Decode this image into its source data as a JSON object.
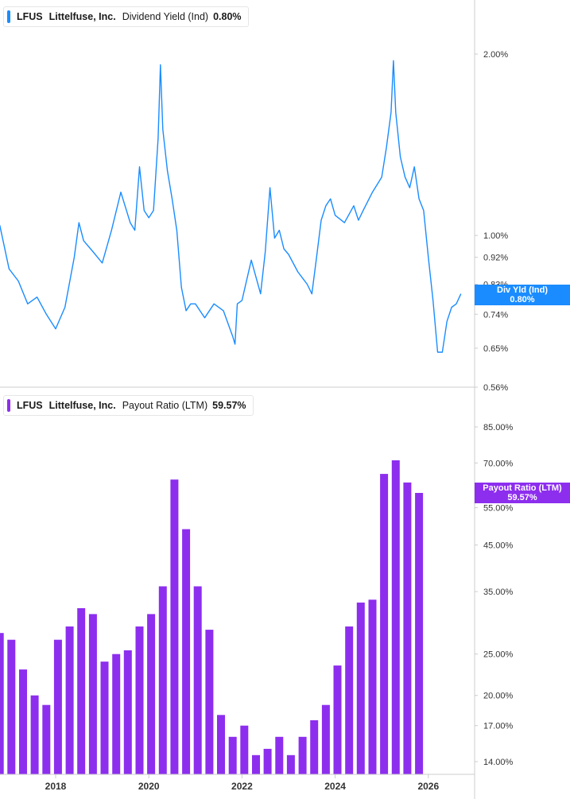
{
  "colors": {
    "yield": "#1a8cff",
    "payout": "#8d2eee",
    "axis": "#cccccc",
    "text": "#333333"
  },
  "legend_top": {
    "ticker": "LFUS",
    "company": "Littelfuse, Inc.",
    "metric": "Dividend Yield (Ind)",
    "value": "0.80%"
  },
  "legend_bottom": {
    "ticker": "LFUS",
    "company": "Littelfuse, Inc.",
    "metric": "Payout Ratio (LTM)",
    "value": "59.57%"
  },
  "tag_top": {
    "line1": "Div Yld (Ind)",
    "line2": "0.80%"
  },
  "tag_bottom": {
    "line1": "Payout Ratio (LTM)",
    "line2": "59.57%"
  },
  "chart_data": [
    {
      "type": "line",
      "series": [
        {
          "name": "Dividend Yield (Ind)",
          "x": [
            2016.8,
            2017.0,
            2017.2,
            2017.4,
            2017.6,
            2017.8,
            2018.0,
            2018.2,
            2018.4,
            2018.5,
            2018.6,
            2018.8,
            2019.0,
            2019.2,
            2019.4,
            2019.6,
            2019.7,
            2019.8,
            2019.9,
            2020.0,
            2020.1,
            2020.2,
            2020.25,
            2020.3,
            2020.4,
            2020.5,
            2020.6,
            2020.7,
            2020.8,
            2020.9,
            2021.0,
            2021.2,
            2021.4,
            2021.6,
            2021.8,
            2021.85,
            2021.9,
            2022.0,
            2022.2,
            2022.4,
            2022.5,
            2022.6,
            2022.7,
            2022.8,
            2022.9,
            2023.0,
            2023.2,
            2023.4,
            2023.5,
            2023.6,
            2023.7,
            2023.8,
            2023.9,
            2024.0,
            2024.2,
            2024.4,
            2024.5,
            2024.6,
            2024.8,
            2025.0,
            2025.1,
            2025.2,
            2025.25,
            2025.3,
            2025.4,
            2025.5,
            2025.6,
            2025.7,
            2025.8,
            2025.9,
            2026.0,
            2026.1,
            2026.2,
            2026.3,
            2026.4,
            2026.5,
            2026.6,
            2026.7
          ],
          "y": [
            1.04,
            0.88,
            0.84,
            0.77,
            0.79,
            0.74,
            0.7,
            0.76,
            0.92,
            1.05,
            0.98,
            0.94,
            0.9,
            1.02,
            1.18,
            1.05,
            1.02,
            1.3,
            1.1,
            1.07,
            1.1,
            1.45,
            1.92,
            1.5,
            1.28,
            1.15,
            1.02,
            0.82,
            0.75,
            0.77,
            0.77,
            0.73,
            0.77,
            0.75,
            0.68,
            0.66,
            0.77,
            0.78,
            0.91,
            0.8,
            0.94,
            1.2,
            0.99,
            1.02,
            0.95,
            0.93,
            0.87,
            0.83,
            0.8,
            0.92,
            1.06,
            1.12,
            1.15,
            1.08,
            1.05,
            1.12,
            1.06,
            1.1,
            1.18,
            1.25,
            1.4,
            1.6,
            1.95,
            1.6,
            1.35,
            1.25,
            1.2,
            1.3,
            1.15,
            1.1,
            0.92,
            0.78,
            0.64,
            0.64,
            0.72,
            0.76,
            0.77,
            0.8
          ]
        }
      ],
      "yscale": "log",
      "ytick_values": [
        0.56,
        0.65,
        0.74,
        0.83,
        0.92,
        1.0,
        2.0
      ],
      "ytick_labels": [
        "0.56%",
        "0.65%",
        "0.74%",
        "0.83%",
        "0.92%",
        "1.00%",
        "2.00%"
      ]
    },
    {
      "type": "bar",
      "series": [
        {
          "name": "Payout Ratio (LTM)",
          "x": [
            2016.8,
            2017.05,
            2017.3,
            2017.55,
            2017.8,
            2018.05,
            2018.3,
            2018.55,
            2018.8,
            2019.05,
            2019.3,
            2019.55,
            2019.8,
            2020.05,
            2020.3,
            2020.55,
            2020.8,
            2021.05,
            2021.3,
            2021.55,
            2021.8,
            2022.05,
            2022.3,
            2022.55,
            2022.8,
            2023.05,
            2023.3,
            2023.55,
            2023.8,
            2024.05,
            2024.3,
            2024.55,
            2024.8,
            2025.05,
            2025.3,
            2025.55,
            2025.8
          ],
          "y": [
            28.0,
            27.0,
            23.0,
            20.0,
            19.0,
            27.0,
            29.0,
            32.0,
            31.0,
            24.0,
            25.0,
            25.5,
            29.0,
            31.0,
            36.0,
            64.0,
            49.0,
            36.0,
            28.5,
            18.0,
            16.0,
            17.0,
            14.5,
            15.0,
            16.0,
            14.5,
            16.0,
            17.5,
            19.0,
            23.5,
            29.0,
            33.0,
            33.5,
            66.0,
            71.0,
            63.0,
            59.57
          ]
        }
      ],
      "yscale": "log",
      "ytick_values": [
        14,
        17,
        20,
        25,
        35,
        45,
        55,
        70,
        85
      ],
      "ytick_labels": [
        "14.00%",
        "17.00%",
        "20.00%",
        "25.00%",
        "35.00%",
        "45.00%",
        "55.00%",
        "70.00%",
        "85.00%"
      ]
    }
  ],
  "xaxis": {
    "ticks": [
      2018,
      2020,
      2022,
      2024,
      2026
    ],
    "labels": [
      "2018",
      "2020",
      "2022",
      "2024",
      "2026"
    ]
  }
}
